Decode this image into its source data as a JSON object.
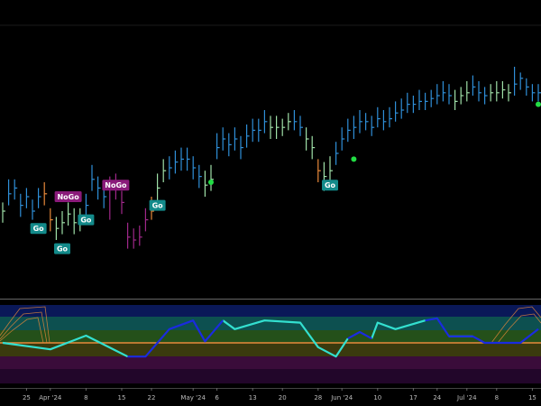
{
  "chart_data": {
    "type": "hlc",
    "ylim": [
      0,
      100
    ],
    "close": [
      30,
      36,
      38,
      32,
      35,
      30,
      35,
      36,
      27,
      24,
      26,
      29,
      26,
      27,
      32,
      41,
      38,
      35,
      38,
      39,
      33,
      21,
      20,
      21,
      27,
      30,
      38,
      44,
      45,
      47,
      48,
      48,
      45,
      42,
      39,
      41,
      52,
      55,
      53,
      55,
      52,
      56,
      58,
      58,
      61,
      59,
      59,
      59,
      61,
      61,
      59,
      55,
      52,
      44,
      42,
      44,
      50,
      55,
      58,
      59,
      61,
      61,
      59,
      62,
      61,
      62,
      64,
      65,
      67,
      67,
      68,
      68,
      69,
      70,
      71,
      70,
      68,
      70,
      71,
      73,
      71,
      70,
      71,
      71,
      72,
      71,
      74,
      76,
      73,
      71,
      71
    ],
    "high": [
      33,
      41,
      41,
      36,
      38,
      34,
      38,
      40,
      31,
      28,
      30,
      33,
      31,
      31,
      36,
      46,
      42,
      39,
      42,
      43,
      37,
      26,
      24,
      25,
      31,
      35,
      43,
      48,
      49,
      51,
      52,
      52,
      49,
      46,
      44,
      46,
      57,
      59,
      57,
      59,
      56,
      60,
      62,
      62,
      65,
      63,
      63,
      62,
      64,
      65,
      63,
      59,
      56,
      48,
      47,
      49,
      54,
      59,
      62,
      63,
      65,
      64,
      63,
      66,
      65,
      66,
      68,
      69,
      71,
      70,
      72,
      71,
      72,
      74,
      75,
      74,
      72,
      73,
      75,
      77,
      75,
      73,
      74,
      75,
      75,
      74,
      80,
      78,
      76,
      74,
      74
    ],
    "low": [
      26,
      32,
      34,
      28,
      31,
      27,
      31,
      32,
      23,
      20,
      22,
      25,
      22,
      23,
      28,
      37,
      34,
      31,
      27,
      34,
      29,
      17,
      17,
      18,
      23,
      27,
      33,
      40,
      41,
      43,
      44,
      44,
      41,
      38,
      35,
      37,
      48,
      51,
      49,
      51,
      48,
      52,
      54,
      54,
      57,
      55,
      55,
      56,
      58,
      58,
      56,
      51,
      48,
      40,
      37,
      40,
      46,
      51,
      54,
      55,
      57,
      58,
      56,
      59,
      58,
      59,
      61,
      62,
      64,
      64,
      65,
      65,
      66,
      67,
      68,
      67,
      65,
      67,
      68,
      70,
      68,
      67,
      68,
      68,
      69,
      68,
      70,
      72,
      70,
      68,
      68
    ],
    "colors": [
      "#9fe0a8",
      "#2f8fd8",
      "#2f8fd8",
      "#2f8fd8",
      "#2f8fd8",
      "#2f8fd8",
      "#2f8fd8",
      "#e8893a",
      "#e8893a",
      "#9fe0a8",
      "#9fe0a8",
      "#9fe0a8",
      "#9fe0a8",
      "#9fe0a8",
      "#2f8fd8",
      "#2f8fd8",
      "#2f8fd8",
      "#2f8fd8",
      "#a0288a",
      "#a0288a",
      "#a0288a",
      "#a0288a",
      "#a0288a",
      "#a0288a",
      "#a0288a",
      "#e8893a",
      "#9fe0a8",
      "#9fe0a8",
      "#2f8fd8",
      "#2f8fd8",
      "#2f8fd8",
      "#2f8fd8",
      "#2f8fd8",
      "#2f8fd8",
      "#9fe0a8",
      "#9fe0a8",
      "#2f8fd8",
      "#2f8fd8",
      "#2f8fd8",
      "#2f8fd8",
      "#2f8fd8",
      "#2f8fd8",
      "#2f8fd8",
      "#2f8fd8",
      "#2f8fd8",
      "#9fe0a8",
      "#9fe0a8",
      "#9fe0a8",
      "#9fe0a8",
      "#2f8fd8",
      "#2f8fd8",
      "#9fe0a8",
      "#9fe0a8",
      "#e8893a",
      "#9fe0a8",
      "#9fe0a8",
      "#2f8fd8",
      "#2f8fd8",
      "#2f8fd8",
      "#2f8fd8",
      "#2f8fd8",
      "#2f8fd8",
      "#2f8fd8",
      "#2f8fd8",
      "#2f8fd8",
      "#2f8fd8",
      "#2f8fd8",
      "#2f8fd8",
      "#2f8fd8",
      "#2f8fd8",
      "#2f8fd8",
      "#2f8fd8",
      "#2f8fd8",
      "#2f8fd8",
      "#2f8fd8",
      "#2f8fd8",
      "#9fe0a8",
      "#9fe0a8",
      "#9fe0a8",
      "#2f8fd8",
      "#2f8fd8",
      "#2f8fd8",
      "#9fe0a8",
      "#9fe0a8",
      "#9fe0a8",
      "#9fe0a8",
      "#2f8fd8",
      "#2f8fd8",
      "#2f8fd8",
      "#2f8fd8",
      "#2f8fd8"
    ],
    "annotations": [
      {
        "text": "Go",
        "index": 6,
        "value": 24,
        "color": "#138a8a"
      },
      {
        "text": "Go",
        "index": 10,
        "value": 17,
        "color": "#138a8a"
      },
      {
        "text": "Go",
        "index": 14,
        "value": 27,
        "color": "#138a8a"
      },
      {
        "text": "Go",
        "index": 26,
        "value": 32,
        "color": "#138a8a"
      },
      {
        "text": "Go",
        "index": 55,
        "value": 39,
        "color": "#138a8a"
      },
      {
        "text": "NoGo",
        "index": 11,
        "value": 35,
        "color": "#8a1a7a"
      },
      {
        "text": "NoGo",
        "index": 19,
        "value": 39,
        "color": "#8a1a7a"
      }
    ],
    "signals": [
      {
        "index": 35,
        "value": 40,
        "color": "#22dd44"
      },
      {
        "index": 59,
        "value": 48,
        "color": "#22dd44"
      },
      {
        "index": 90,
        "value": 67,
        "color": "#22dd44"
      }
    ],
    "xticks": [
      {
        "value": 4,
        "label": "25"
      },
      {
        "value": 8,
        "label": "Apr '24"
      },
      {
        "value": 14,
        "label": "8"
      },
      {
        "value": 20,
        "label": "15"
      },
      {
        "value": 25,
        "label": "22"
      },
      {
        "value": 32,
        "label": "May '24"
      },
      {
        "value": 36,
        "label": "6"
      },
      {
        "value": 42,
        "label": "13"
      },
      {
        "value": 47,
        "label": "20"
      },
      {
        "value": 53,
        "label": "28"
      },
      {
        "value": 57,
        "label": "Jun '24"
      },
      {
        "value": 63,
        "label": "10"
      },
      {
        "value": 69,
        "label": "17"
      },
      {
        "value": 73,
        "label": "24"
      },
      {
        "value": 78,
        "label": "Jul '24"
      },
      {
        "value": 83,
        "label": "8"
      },
      {
        "value": 89,
        "label": "15"
      }
    ],
    "oscillator": {
      "ylim": [
        -6,
        6
      ],
      "x": [
        0,
        8,
        14,
        21,
        24,
        28,
        32,
        34,
        37,
        39,
        44,
        50,
        53,
        56,
        58,
        60,
        62,
        63,
        66,
        71,
        73,
        75,
        79,
        81,
        87,
        90
      ],
      "series": [
        {
          "color": "#33e0d0",
          "values": [
            0,
            -0.9,
            1,
            -1.9,
            null,
            null,
            null,
            null,
            3.1,
            1.9,
            3.1,
            2.8,
            -0.6,
            -1.9,
            0.6,
            null,
            0.6,
            2.8,
            1.9,
            3.1,
            null,
            0.9,
            0.9,
            null,
            null,
            null
          ]
        },
        {
          "color": "#1a2be0",
          "values": [
            null,
            null,
            null,
            -1.9,
            -1.9,
            1.9,
            3.1,
            0.2,
            3.1,
            null,
            null,
            null,
            null,
            null,
            0.6,
            1.5,
            0.6,
            null,
            null,
            3.1,
            3.4,
            0.9,
            0.9,
            0,
            0,
            1.9
          ]
        }
      ]
    }
  }
}
